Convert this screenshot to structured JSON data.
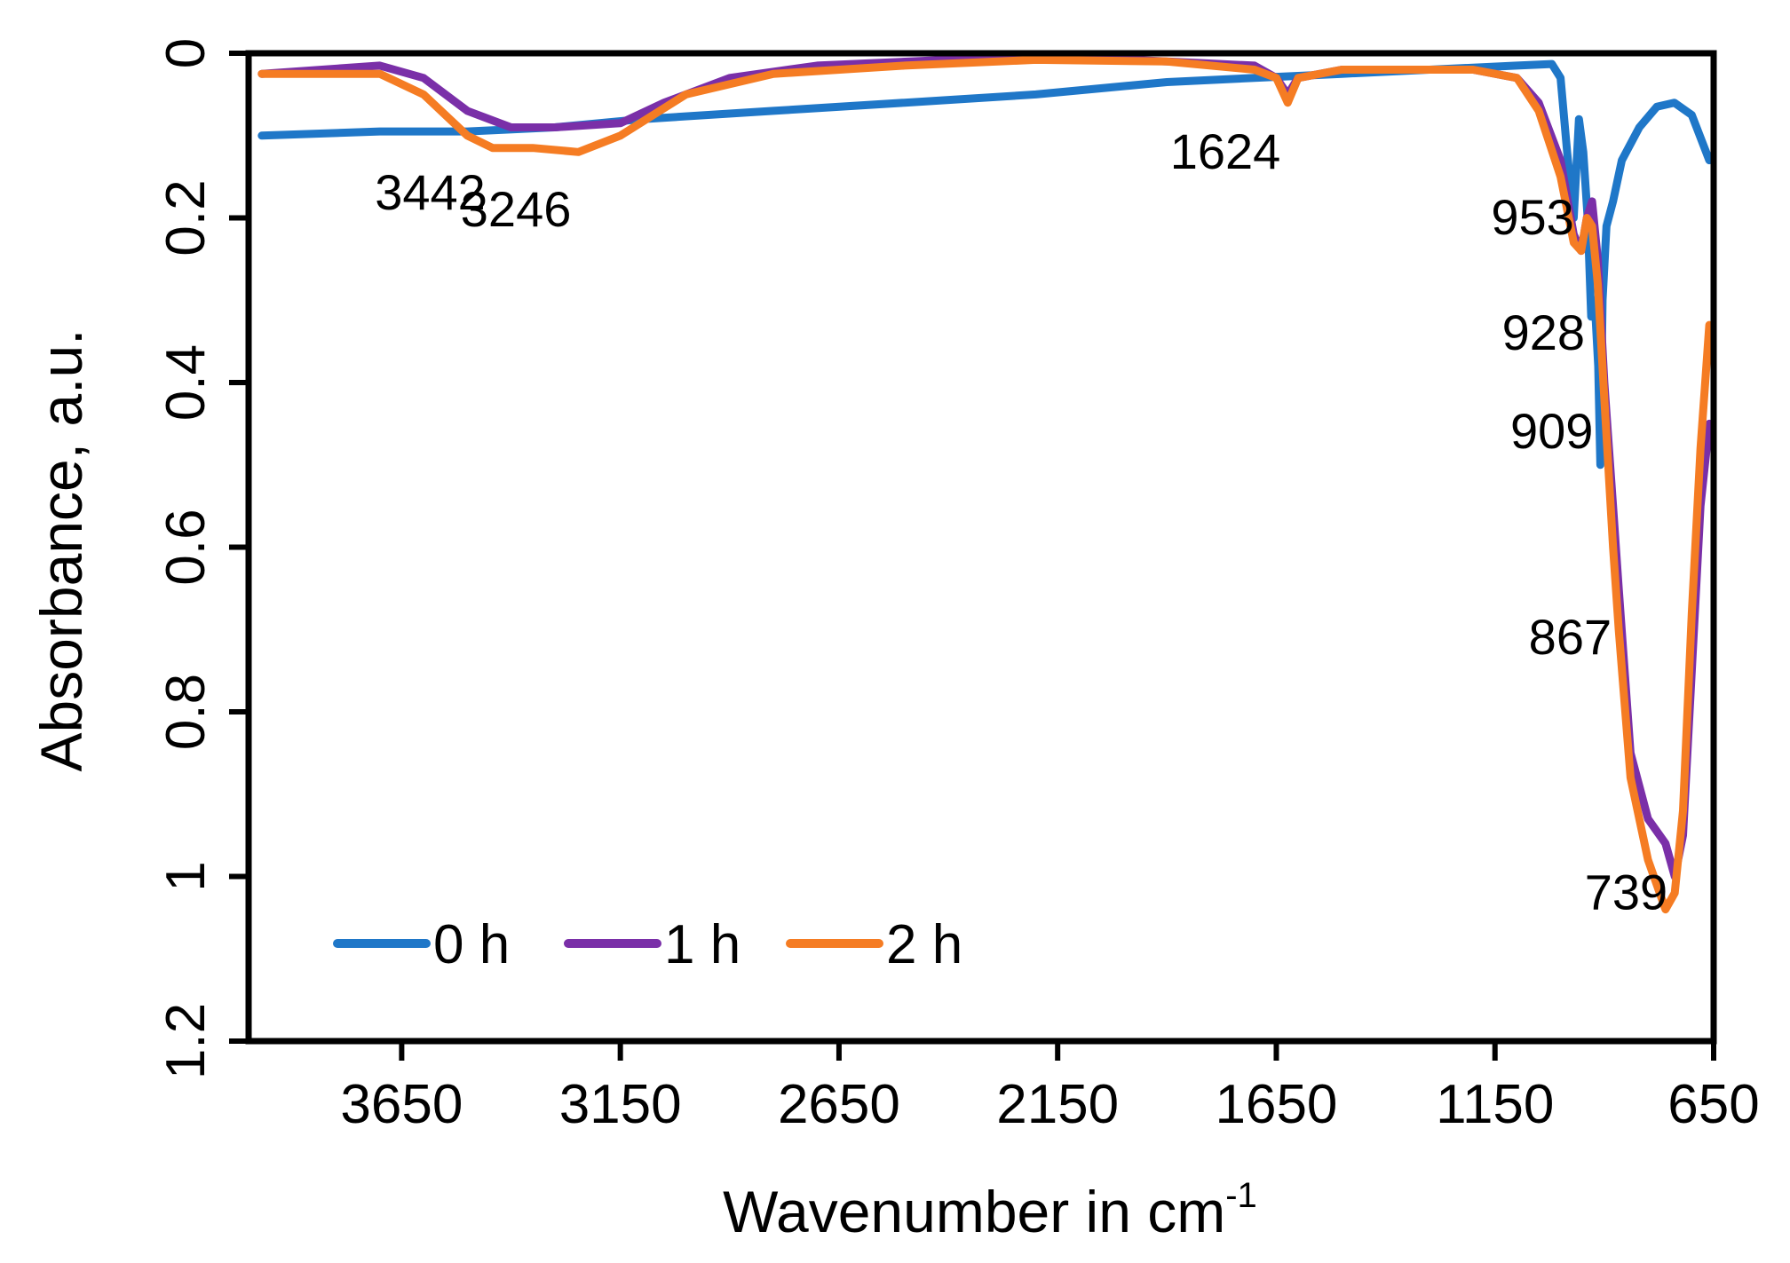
{
  "chart_data": {
    "type": "line",
    "title": "",
    "xlabel": "Wavenumber in cm",
    "xlabel_superscript": "-1",
    "ylabel": "Absorbance, a.u.",
    "xlim": [
      4000,
      650
    ],
    "x_reversed": true,
    "ylim": [
      0,
      1.2
    ],
    "y_reversed": true,
    "x_ticks": [
      "3650",
      "3150",
      "2650",
      "2150",
      "1650",
      "1150",
      "650"
    ],
    "y_ticks": [
      "0",
      "0.2",
      "0.4",
      "0.6",
      "0.8",
      "1",
      "1.2"
    ],
    "grid": false,
    "legend_position": "bottom-left",
    "series": [
      {
        "name": "0 h",
        "color": "#1f77c8",
        "points": [
          [
            3970,
            0.1
          ],
          [
            3700,
            0.095
          ],
          [
            3500,
            0.095
          ],
          [
            3300,
            0.09
          ],
          [
            3100,
            0.08
          ],
          [
            2800,
            0.07
          ],
          [
            2500,
            0.06
          ],
          [
            2200,
            0.05
          ],
          [
            1900,
            0.035
          ],
          [
            1700,
            0.03
          ],
          [
            1500,
            0.025
          ],
          [
            1300,
            0.02
          ],
          [
            1100,
            0.015
          ],
          [
            1020,
            0.013
          ],
          [
            1000,
            0.03
          ],
          [
            985,
            0.12
          ],
          [
            970,
            0.2
          ],
          [
            958,
            0.08
          ],
          [
            948,
            0.12
          ],
          [
            938,
            0.2
          ],
          [
            930,
            0.32
          ],
          [
            922,
            0.3
          ],
          [
            914,
            0.38
          ],
          [
            909,
            0.5
          ],
          [
            904,
            0.3
          ],
          [
            895,
            0.21
          ],
          [
            880,
            0.18
          ],
          [
            860,
            0.13
          ],
          [
            820,
            0.09
          ],
          [
            780,
            0.065
          ],
          [
            740,
            0.06
          ],
          [
            700,
            0.075
          ],
          [
            660,
            0.13
          ]
        ]
      },
      {
        "name": "1 h",
        "color": "#7a2fa8",
        "points": [
          [
            3970,
            0.025
          ],
          [
            3700,
            0.015
          ],
          [
            3600,
            0.03
          ],
          [
            3500,
            0.07
          ],
          [
            3400,
            0.09
          ],
          [
            3300,
            0.09
          ],
          [
            3150,
            0.085
          ],
          [
            3050,
            0.06
          ],
          [
            2900,
            0.03
          ],
          [
            2700,
            0.015
          ],
          [
            2400,
            0.008
          ],
          [
            2100,
            0.005
          ],
          [
            1900,
            0.01
          ],
          [
            1700,
            0.015
          ],
          [
            1650,
            0.03
          ],
          [
            1624,
            0.05
          ],
          [
            1600,
            0.03
          ],
          [
            1500,
            0.02
          ],
          [
            1200,
            0.02
          ],
          [
            1100,
            0.03
          ],
          [
            1050,
            0.06
          ],
          [
            1000,
            0.13
          ],
          [
            970,
            0.22
          ],
          [
            953,
            0.24
          ],
          [
            940,
            0.2
          ],
          [
            928,
            0.18
          ],
          [
            915,
            0.25
          ],
          [
            900,
            0.4
          ],
          [
            880,
            0.55
          ],
          [
            867,
            0.65
          ],
          [
            840,
            0.85
          ],
          [
            800,
            0.93
          ],
          [
            760,
            0.96
          ],
          [
            739,
            1.0
          ],
          [
            720,
            0.95
          ],
          [
            700,
            0.75
          ],
          [
            680,
            0.55
          ],
          [
            660,
            0.45
          ]
        ]
      },
      {
        "name": "2 h",
        "color": "#f57c23",
        "points": [
          [
            3970,
            0.025
          ],
          [
            3700,
            0.025
          ],
          [
            3600,
            0.05
          ],
          [
            3500,
            0.1
          ],
          [
            3442,
            0.115
          ],
          [
            3350,
            0.115
          ],
          [
            3246,
            0.12
          ],
          [
            3150,
            0.1
          ],
          [
            3000,
            0.05
          ],
          [
            2800,
            0.025
          ],
          [
            2500,
            0.015
          ],
          [
            2200,
            0.008
          ],
          [
            1900,
            0.01
          ],
          [
            1700,
            0.02
          ],
          [
            1650,
            0.03
          ],
          [
            1624,
            0.06
          ],
          [
            1600,
            0.03
          ],
          [
            1500,
            0.02
          ],
          [
            1200,
            0.02
          ],
          [
            1100,
            0.03
          ],
          [
            1050,
            0.07
          ],
          [
            1000,
            0.15
          ],
          [
            970,
            0.23
          ],
          [
            953,
            0.24
          ],
          [
            940,
            0.2
          ],
          [
            928,
            0.21
          ],
          [
            915,
            0.28
          ],
          [
            900,
            0.42
          ],
          [
            880,
            0.6
          ],
          [
            867,
            0.7
          ],
          [
            840,
            0.88
          ],
          [
            800,
            0.98
          ],
          [
            760,
            1.04
          ],
          [
            739,
            1.02
          ],
          [
            720,
            0.92
          ],
          [
            700,
            0.68
          ],
          [
            680,
            0.48
          ],
          [
            660,
            0.33
          ]
        ]
      }
    ],
    "annotations": [
      {
        "text": "3442",
        "x": 3442,
        "y": 0.19
      },
      {
        "text": "3246",
        "x": 3246,
        "y": 0.21
      },
      {
        "text": "1624",
        "x": 1624,
        "y": 0.14
      },
      {
        "text": "953",
        "x": 953,
        "y": 0.22
      },
      {
        "text": "928",
        "x": 928,
        "y": 0.36
      },
      {
        "text": "909",
        "x": 909,
        "y": 0.48
      },
      {
        "text": "867",
        "x": 867,
        "y": 0.73
      },
      {
        "text": "739",
        "x": 739,
        "y": 1.04
      }
    ]
  }
}
